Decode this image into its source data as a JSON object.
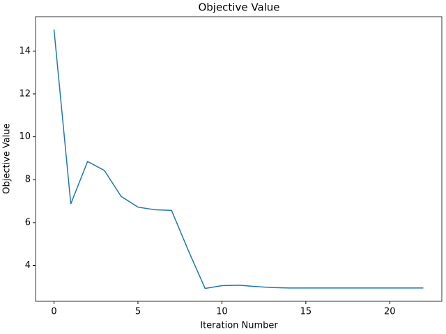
{
  "chart_data": {
    "type": "line",
    "title": "Objective Value",
    "x_label": "Iteration Number",
    "y_label": "Objective Value",
    "x": [
      0,
      1,
      2,
      3,
      4,
      5,
      6,
      7,
      8,
      9,
      10,
      11,
      12,
      13,
      14,
      15,
      16,
      17,
      18,
      19,
      20,
      21,
      22
    ],
    "series": [
      {
        "name": "Objective Value",
        "color": "#1f77b4",
        "values": [
          15.0,
          6.87,
          8.85,
          8.43,
          7.22,
          6.72,
          6.6,
          6.57,
          4.7,
          2.93,
          3.06,
          3.08,
          3.02,
          2.97,
          2.95,
          2.95,
          2.95,
          2.95,
          2.95,
          2.95,
          2.95,
          2.95,
          2.95
        ]
      }
    ],
    "xlim": [
      -1.1,
      23.1
    ],
    "xticks": [
      0,
      5,
      10,
      15,
      20
    ],
    "ylim": [
      2.33,
      15.6
    ],
    "yticks": [
      4,
      6,
      8,
      10,
      12,
      14
    ],
    "grid": false
  }
}
